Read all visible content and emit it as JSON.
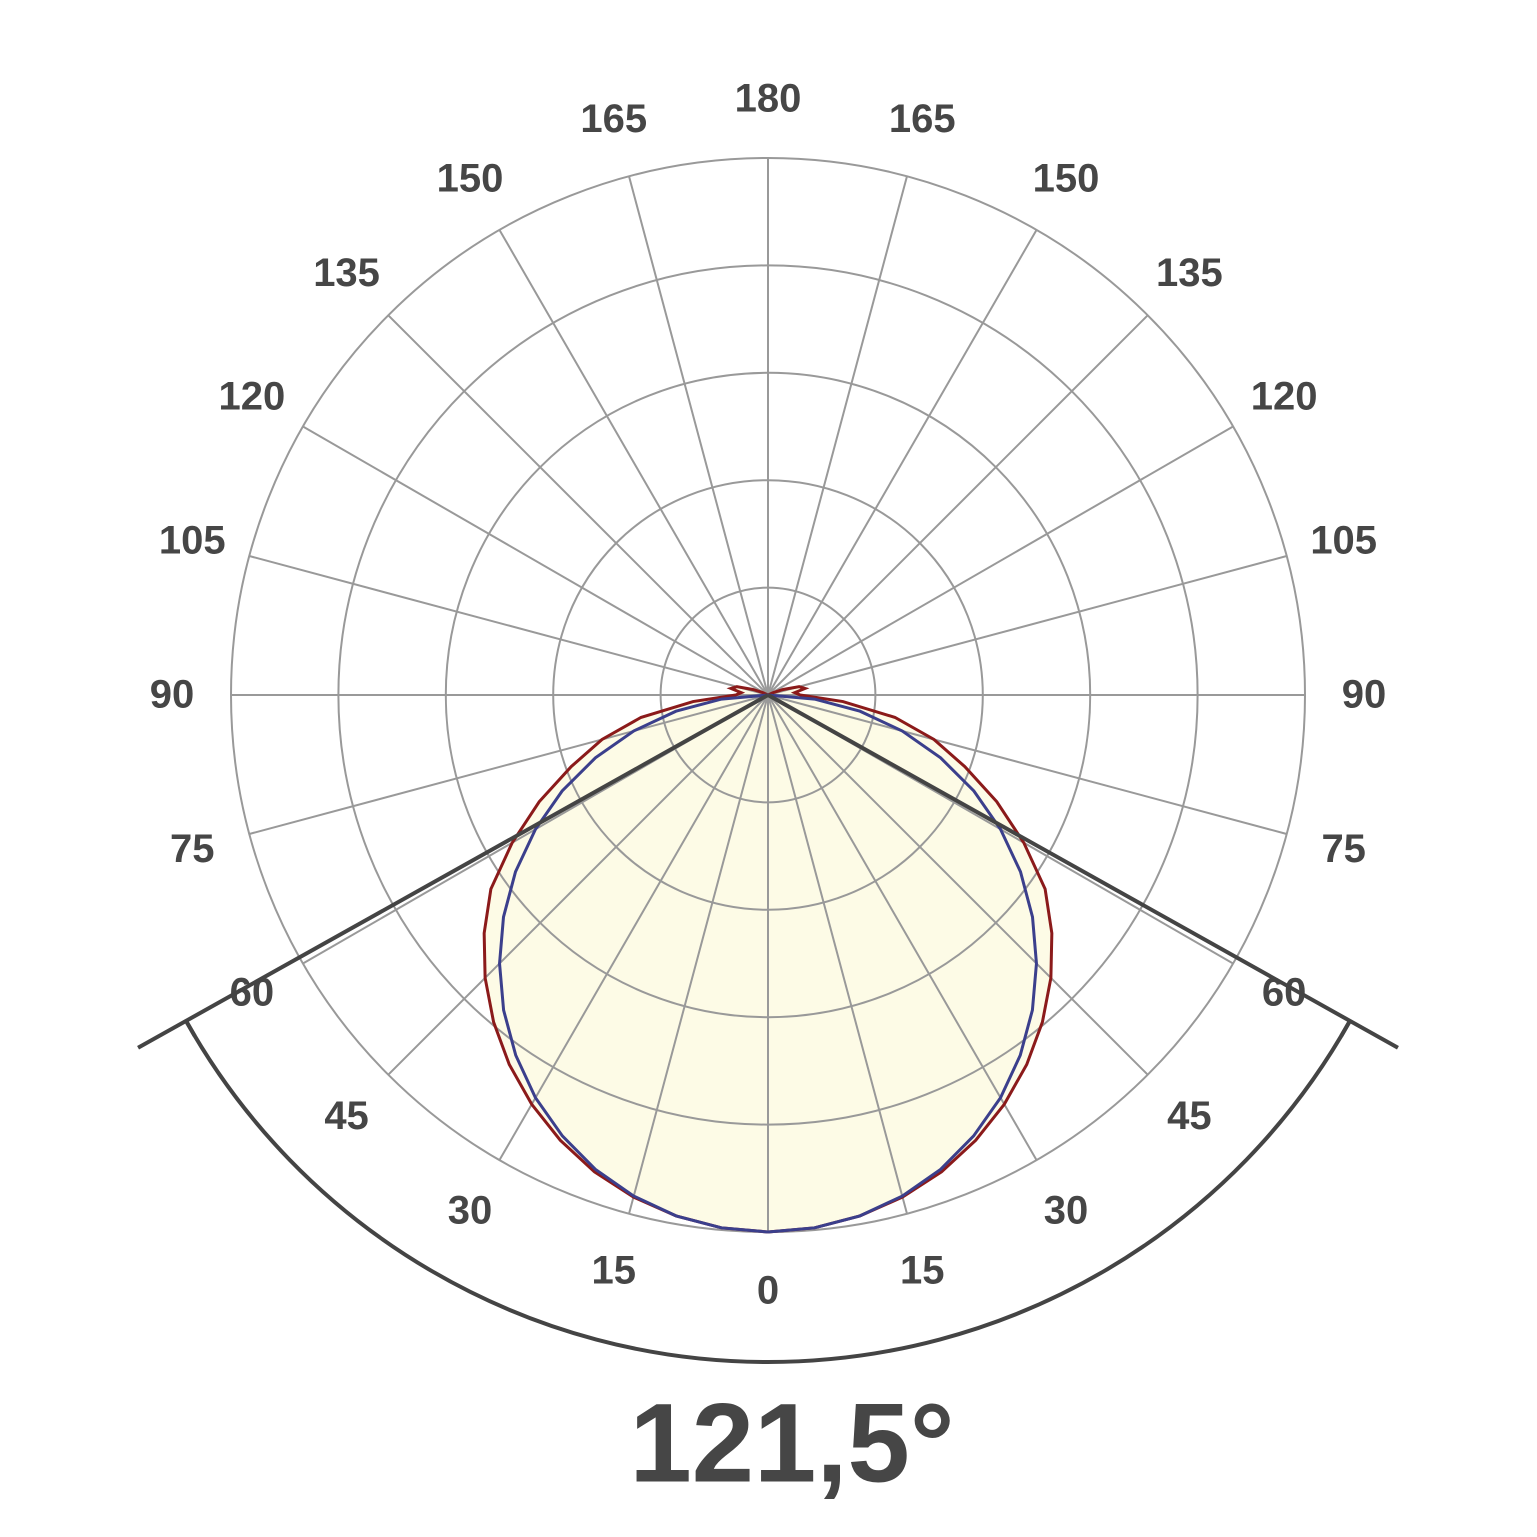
{
  "chart_data": {
    "type": "polar",
    "angle_ticks": [
      0,
      15,
      30,
      45,
      60,
      75,
      90,
      105,
      120,
      135,
      150,
      165,
      180
    ],
    "rlim": [
      0,
      100
    ],
    "rticks": [
      20,
      40,
      60,
      80,
      100
    ],
    "grid": true,
    "x": [
      0,
      5,
      10,
      15,
      20,
      25,
      30,
      35,
      40,
      45,
      50,
      55,
      60,
      65,
      70,
      75,
      80,
      85,
      90,
      95,
      100,
      105,
      110,
      115,
      120,
      125,
      130,
      135,
      140,
      145,
      150,
      155,
      160,
      165,
      170,
      175,
      180
    ],
    "series": [
      {
        "color": "#8b1a1a",
        "fill": "#fdfbe6",
        "values": [
          100,
          99.6,
          98.5,
          96.8,
          94.5,
          91.5,
          88,
          84,
          79.5,
          74.5,
          69,
          63,
          55,
          47,
          39,
          32,
          24,
          14,
          6,
          5,
          7,
          6,
          3,
          1,
          0,
          0,
          0,
          0,
          0,
          0,
          0,
          0,
          0,
          0,
          0,
          0,
          0
        ]
      },
      {
        "color": "#3b3f8c",
        "values": [
          100,
          99.6,
          98.5,
          96.6,
          94,
          90.6,
          86.6,
          81.9,
          76.6,
          70.7,
          64.3,
          57.4,
          50,
          42.3,
          34.2,
          25.9,
          17.4,
          8.7,
          0,
          0,
          0,
          0,
          0,
          0,
          0,
          0,
          0,
          0,
          0,
          0,
          0,
          0,
          0,
          0,
          0,
          0,
          0
        ]
      }
    ],
    "beam_angle": {
      "value": 121.5,
      "label": "121,5°"
    }
  }
}
